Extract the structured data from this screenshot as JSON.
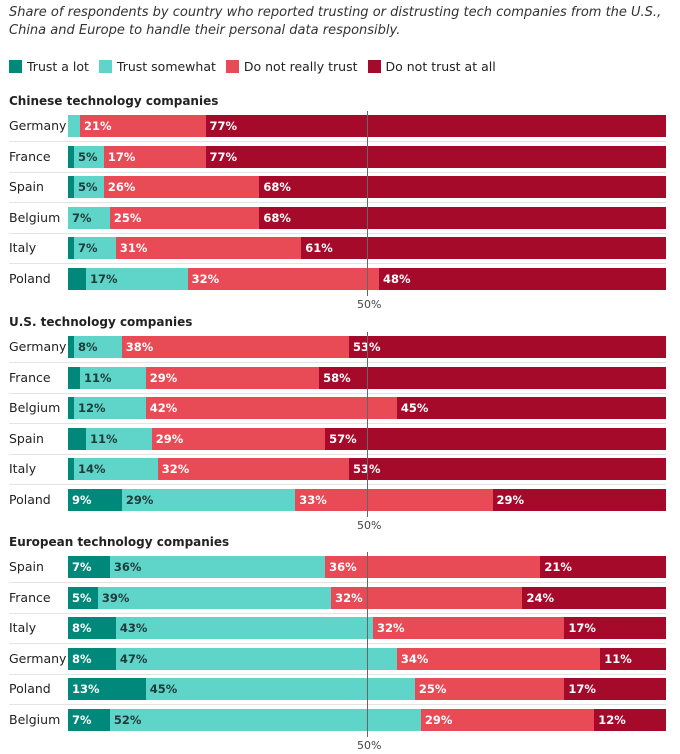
{
  "chart_data": {
    "type": "bar",
    "stacked": true,
    "orientation": "horizontal",
    "title": "Share of respondents by country who reported trusting or distrusting tech companies from the U.S., China and Europe to handle their personal data responsibly.",
    "legend": {
      "placement": "top-left",
      "entries": [
        "Trust a lot",
        "Trust somewhat",
        "Do not really trust",
        "Do not trust at all"
      ]
    },
    "colors": [
      "#00897a",
      "#5fd4c9",
      "#e84b55",
      "#a60a2b"
    ],
    "label_colors": [
      "#ffffff",
      "#1f3b3a",
      "#ffffff",
      "#ffffff"
    ],
    "reference_label": "50%",
    "panels": [
      {
        "title": "Chinese technology companies",
        "rows": [
          {
            "country": "Germany",
            "values": [
              0,
              2,
              21,
              77
            ]
          },
          {
            "country": "France",
            "values": [
              1,
              5,
              17,
              77
            ]
          },
          {
            "country": "Spain",
            "values": [
              1,
              5,
              26,
              68
            ]
          },
          {
            "country": "Belgium",
            "values": [
              0,
              7,
              25,
              68
            ]
          },
          {
            "country": "Italy",
            "values": [
              1,
              7,
              31,
              61
            ]
          },
          {
            "country": "Poland",
            "values": [
              3,
              17,
              32,
              48
            ]
          }
        ]
      },
      {
        "title": "U.S. technology companies",
        "rows": [
          {
            "country": "Germany",
            "values": [
              1,
              8,
              38,
              53
            ]
          },
          {
            "country": "France",
            "values": [
              2,
              11,
              29,
              58
            ]
          },
          {
            "country": "Belgium",
            "values": [
              1,
              12,
              42,
              45
            ]
          },
          {
            "country": "Spain",
            "values": [
              3,
              11,
              29,
              57
            ]
          },
          {
            "country": "Italy",
            "values": [
              1,
              14,
              32,
              53
            ]
          },
          {
            "country": "Poland",
            "values": [
              9,
              29,
              33,
              29
            ]
          }
        ]
      },
      {
        "title": "European technology companies",
        "rows": [
          {
            "country": "Spain",
            "values": [
              7,
              36,
              36,
              21
            ]
          },
          {
            "country": "France",
            "values": [
              5,
              39,
              32,
              24
            ]
          },
          {
            "country": "Italy",
            "values": [
              8,
              43,
              32,
              17
            ]
          },
          {
            "country": "Germany",
            "values": [
              8,
              47,
              34,
              11
            ]
          },
          {
            "country": "Poland",
            "values": [
              13,
              45,
              25,
              17
            ]
          },
          {
            "country": "Belgium",
            "values": [
              7,
              52,
              29,
              12
            ]
          }
        ]
      }
    ]
  }
}
